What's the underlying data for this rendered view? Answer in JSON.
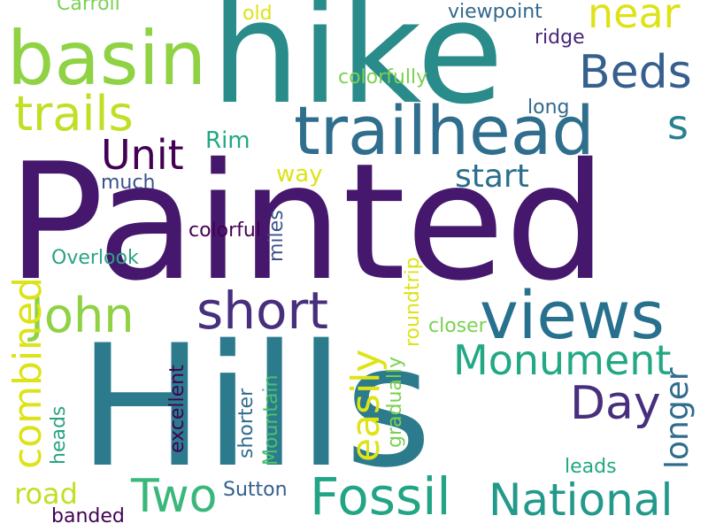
{
  "words": [
    {
      "text": "Painted",
      "color": "#46186d"
    },
    {
      "text": "Hills",
      "color": "#2b7b8d"
    },
    {
      "text": "hike",
      "color": "#2a8c8a"
    },
    {
      "text": "trailhead",
      "color": "#2f6f8d"
    },
    {
      "text": "basin",
      "color": "#8fd244"
    },
    {
      "text": "views",
      "color": "#27718e"
    },
    {
      "text": "trails",
      "color": "#c1df25"
    },
    {
      "text": "Fossil",
      "color": "#21a585"
    },
    {
      "text": "National",
      "color": "#22998a"
    },
    {
      "text": "Beds",
      "color": "#355f8d"
    },
    {
      "text": "near",
      "color": "#dde318"
    },
    {
      "text": "John",
      "color": "#8fd244"
    },
    {
      "text": "short",
      "color": "#472f7d"
    },
    {
      "text": "Monument",
      "color": "#22a884"
    },
    {
      "text": "Two",
      "color": "#3ab77a"
    },
    {
      "text": "Day",
      "color": "#472f7d"
    },
    {
      "text": "Unit",
      "color": "#440154"
    },
    {
      "text": "s",
      "color": "#26828e"
    },
    {
      "text": "start",
      "color": "#2b6e8e"
    },
    {
      "text": "combined",
      "color": "#dde318"
    },
    {
      "text": "easily",
      "color": "#dfe318"
    },
    {
      "text": "longer",
      "color": "#2f6c8e"
    },
    {
      "text": "miles",
      "color": "#3b528b"
    },
    {
      "text": "roundtrip",
      "color": "#dde318"
    },
    {
      "text": "heads",
      "color": "#2aa383"
    },
    {
      "text": "excellent",
      "color": "#440154"
    },
    {
      "text": "shorter",
      "color": "#2f6c8e"
    },
    {
      "text": "Mountain",
      "color": "#4ac16d"
    },
    {
      "text": "gradually",
      "color": "#7ad151"
    },
    {
      "text": "road",
      "color": "#c1df25"
    },
    {
      "text": "way",
      "color": "#dde318"
    },
    {
      "text": "Rim",
      "color": "#22a884"
    },
    {
      "text": "much",
      "color": "#3b528b"
    },
    {
      "text": "long",
      "color": "#31688e"
    },
    {
      "text": "ridge",
      "color": "#482677"
    },
    {
      "text": "viewpoint",
      "color": "#31688e"
    },
    {
      "text": "old",
      "color": "#dde318"
    },
    {
      "text": "Carroll",
      "color": "#7ad151"
    },
    {
      "text": "colorfully",
      "color": "#7ad151"
    },
    {
      "text": "colorful",
      "color": "#440154"
    },
    {
      "text": "Overlook",
      "color": "#2aa383"
    },
    {
      "text": "closer",
      "color": "#7ad151"
    },
    {
      "text": "leads",
      "color": "#22a884"
    },
    {
      "text": "Sutton",
      "color": "#355f8d"
    },
    {
      "text": "banded",
      "color": "#440154"
    }
  ]
}
